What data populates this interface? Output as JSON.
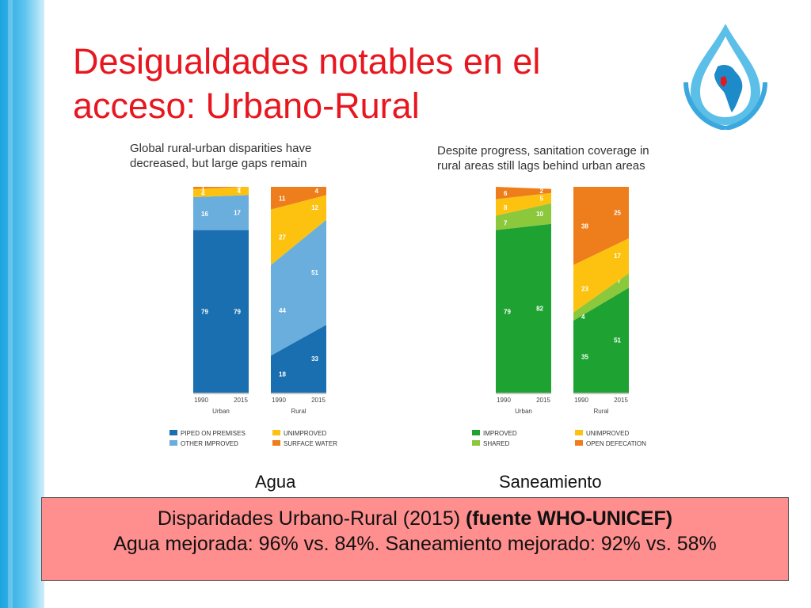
{
  "slide": {
    "title_line1": "Desigualdades notables en el",
    "title_line2": "acceso: Urbano-Rural",
    "caption_water": "Agua",
    "caption_sanitation": "Saneamiento",
    "summary_line1_plain": "Disparidades Urbano-Rural (2015) ",
    "summary_line1_bold": "(fuente WHO-UNICEF)",
    "summary_line2": "Agua mejorada: 96% vs. 84%. Saneamiento mejorado: 92% vs. 58%"
  },
  "colors": {
    "title": "#e8161f",
    "piped": "#1a6fb0",
    "other_improved": "#6aaedd",
    "unimproved": "#fcc20f",
    "surface_water": "#ee7e1c",
    "improved": "#1ea332",
    "shared": "#8cc83c",
    "open_defecation": "#ee7e1c",
    "summary_box": "#ff8e8e"
  },
  "chart_data": [
    {
      "type": "area",
      "title_line1": "Global rural-urban disparities have",
      "title_line2": "decreased, but large gaps remain",
      "x": [
        "1990",
        "2015"
      ],
      "ylim": [
        0,
        100
      ],
      "stacking": "percent",
      "legend": [
        {
          "label": "PIPED ON PREMISES",
          "key": "piped"
        },
        {
          "label": "UNIMPROVED",
          "key": "unimproved"
        },
        {
          "label": "OTHER IMPROVED",
          "key": "other_improved"
        },
        {
          "label": "SURFACE WATER",
          "key": "surface_water"
        }
      ],
      "groups": [
        {
          "label": "Urban",
          "series": [
            {
              "key": "piped",
              "values": [
                79,
                79
              ]
            },
            {
              "key": "other_improved",
              "values": [
                16,
                17
              ]
            },
            {
              "key": "unimproved",
              "values": [
                4,
                4
              ]
            },
            {
              "key": "surface_water",
              "values": [
                1,
                0
              ]
            }
          ]
        },
        {
          "label": "Rural",
          "series": [
            {
              "key": "piped",
              "values": [
                18,
                33
              ]
            },
            {
              "key": "other_improved",
              "values": [
                44,
                51
              ]
            },
            {
              "key": "unimproved",
              "values": [
                27,
                12
              ]
            },
            {
              "key": "surface_water",
              "values": [
                11,
                4
              ]
            }
          ]
        }
      ]
    },
    {
      "type": "area",
      "title_line1": "Despite progress, sanitation coverage in",
      "title_line2": "rural areas still lags behind urban areas",
      "x": [
        "1990",
        "2015"
      ],
      "ylim": [
        0,
        100
      ],
      "stacking": "percent",
      "legend": [
        {
          "label": "IMPROVED",
          "key": "improved"
        },
        {
          "label": "UNIMPROVED",
          "key": "unimproved"
        },
        {
          "label": "SHARED",
          "key": "shared"
        },
        {
          "label": "OPEN DEFECATION",
          "key": "open_defecation"
        }
      ],
      "groups": [
        {
          "label": "Urban",
          "series": [
            {
              "key": "improved",
              "values": [
                79,
                82
              ]
            },
            {
              "key": "shared",
              "values": [
                7,
                10
              ]
            },
            {
              "key": "unimproved",
              "values": [
                8,
                5
              ]
            },
            {
              "key": "open_defecation",
              "values": [
                6,
                2
              ]
            }
          ]
        },
        {
          "label": "Rural",
          "series": [
            {
              "key": "improved",
              "values": [
                35,
                51
              ]
            },
            {
              "key": "shared",
              "values": [
                4,
                7
              ]
            },
            {
              "key": "unimproved",
              "values": [
                23,
                17
              ]
            },
            {
              "key": "open_defecation",
              "values": [
                38,
                25
              ]
            }
          ]
        }
      ]
    }
  ]
}
